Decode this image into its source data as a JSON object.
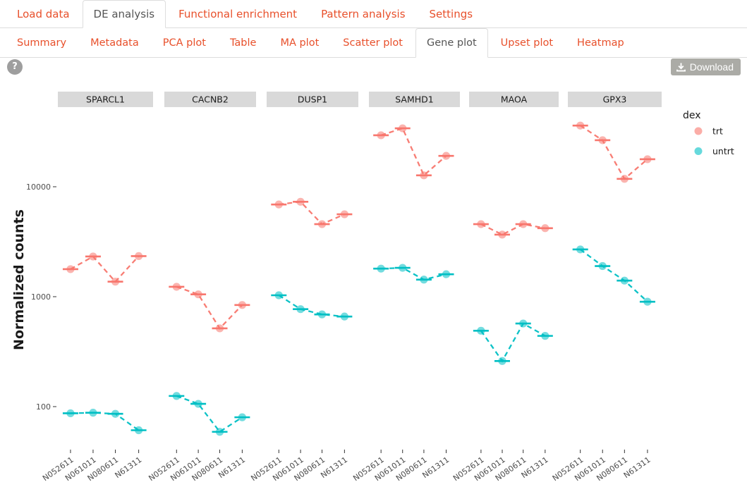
{
  "nav_main": {
    "items": [
      {
        "label": "Load data",
        "active": false
      },
      {
        "label": "DE analysis",
        "active": true
      },
      {
        "label": "Functional enrichment",
        "active": false
      },
      {
        "label": "Pattern analysis",
        "active": false
      },
      {
        "label": "Settings",
        "active": false
      }
    ]
  },
  "nav_sub": {
    "items": [
      {
        "label": "Summary",
        "active": false
      },
      {
        "label": "Metadata",
        "active": false
      },
      {
        "label": "PCA plot",
        "active": false
      },
      {
        "label": "Table",
        "active": false
      },
      {
        "label": "MA plot",
        "active": false
      },
      {
        "label": "Scatter plot",
        "active": false
      },
      {
        "label": "Gene plot",
        "active": true
      },
      {
        "label": "Upset plot",
        "active": false
      },
      {
        "label": "Heatmap",
        "active": false
      }
    ]
  },
  "toolbar": {
    "help_label": "?",
    "download_label": "Download"
  },
  "colors": {
    "tab_link": "#E8502B",
    "active_tab_text": "#555555",
    "strip_bg": "#D9D9D9",
    "button_gray": "#ABABA6",
    "axis_text": "#4D4D4D",
    "trt": "#F8766D",
    "untrt": "#00BFC4"
  },
  "chart_data": {
    "type": "line",
    "scale": "log10",
    "title": "",
    "ylabel": "Normalized counts",
    "xlabel": "",
    "grid": false,
    "ylim": [
      40,
      51000
    ],
    "yticks": [
      {
        "value": 100,
        "label": "100"
      },
      {
        "value": 1000,
        "label": "1000"
      },
      {
        "value": 10000,
        "label": "10000"
      }
    ],
    "x_categories": [
      "N052611",
      "N061011",
      "N080611",
      "N61311"
    ],
    "legend": {
      "title": "dex",
      "position": "right",
      "entries": [
        {
          "label": "trt",
          "color": "#F8766D"
        },
        {
          "label": "untrt",
          "color": "#00BFC4"
        }
      ]
    },
    "facets": [
      {
        "gene": "SPARCL1",
        "series": {
          "trt": [
            1780,
            2320,
            1370,
            2340
          ],
          "untrt": [
            87,
            88,
            86,
            61
          ]
        }
      },
      {
        "gene": "CACNB2",
        "series": {
          "trt": [
            1230,
            1050,
            515,
            840
          ],
          "untrt": [
            125,
            106,
            59,
            80
          ]
        }
      },
      {
        "gene": "DUSP1",
        "series": {
          "trt": [
            6900,
            7300,
            4570,
            5620
          ],
          "untrt": [
            1030,
            770,
            690,
            660
          ]
        }
      },
      {
        "gene": "SAMHD1",
        "series": {
          "trt": [
            29400,
            34000,
            12700,
            19100
          ],
          "untrt": [
            1800,
            1830,
            1430,
            1600
          ]
        }
      },
      {
        "gene": "MAOA",
        "series": {
          "trt": [
            4570,
            3670,
            4570,
            4200
          ],
          "untrt": [
            490,
            260,
            570,
            440
          ]
        }
      },
      {
        "gene": "GPX3",
        "series": {
          "trt": [
            36000,
            26500,
            11800,
            17800
          ],
          "untrt": [
            2690,
            1900,
            1400,
            900
          ]
        }
      }
    ]
  }
}
